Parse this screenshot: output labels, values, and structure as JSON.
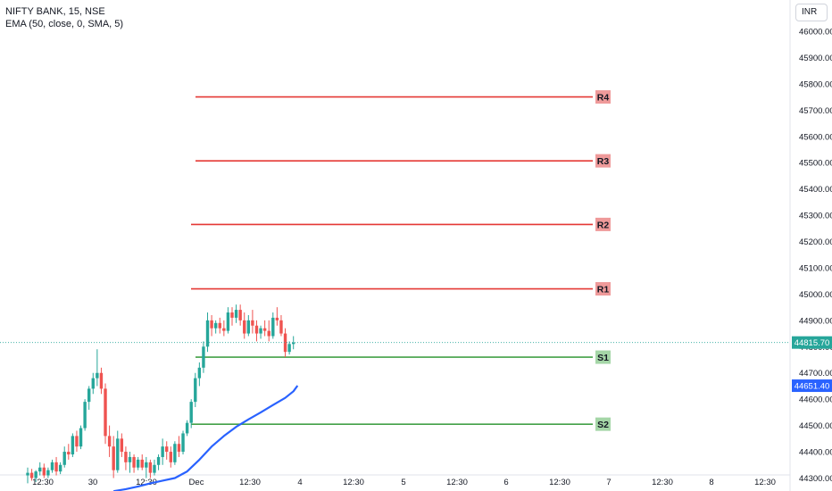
{
  "legend": {
    "symbol": "NIFTY BANK, 15, NSE",
    "indicator": "EMA (50, close, 0, SMA, 5)"
  },
  "currency_button": "INR",
  "chart_data": {
    "type": "candlestick",
    "symbol": "NIFTY BANK",
    "interval": "15",
    "exchange": "NSE",
    "y_ticks": [
      44300,
      44400,
      44500,
      44600,
      44700,
      44800,
      44900,
      45000,
      45100,
      45200,
      45300,
      45400,
      45500,
      45600,
      45700,
      45800,
      45900,
      46000
    ],
    "ylim": [
      44245,
      46055
    ],
    "x_ticks": [
      "12:30",
      "30",
      "12:30",
      "Dec",
      "12:30",
      "4",
      "12:30",
      "5",
      "12:30",
      "6",
      "12:30",
      "7",
      "12:30",
      "8",
      "12:30"
    ],
    "last_price": "44815.70",
    "ema_last": "44651.40",
    "colors": {
      "up": "#26a69a",
      "down": "#ef5350",
      "ema": "#2962ff",
      "resistance": "#e53935",
      "support": "#43a047"
    },
    "levels": [
      {
        "label": "R4",
        "value": 45750
      },
      {
        "label": "R3",
        "value": 45507
      },
      {
        "label": "R2",
        "value": 45265
      },
      {
        "label": "R1",
        "value": 45020
      },
      {
        "label": "S1",
        "value": 44760
      },
      {
        "label": "S2",
        "value": 44505
      }
    ],
    "candles": [
      [
        44310,
        44340,
        44280,
        44320
      ],
      [
        44320,
        44335,
        44290,
        44300
      ],
      [
        44300,
        44330,
        44285,
        44325
      ],
      [
        44325,
        44360,
        44310,
        44340
      ],
      [
        44340,
        44355,
        44300,
        44310
      ],
      [
        44310,
        44340,
        44300,
        44330
      ],
      [
        44330,
        44370,
        44320,
        44360
      ],
      [
        44360,
        44380,
        44310,
        44325
      ],
      [
        44325,
        44360,
        44315,
        44350
      ],
      [
        44350,
        44420,
        44340,
        44400
      ],
      [
        44400,
        44430,
        44370,
        44390
      ],
      [
        44390,
        44470,
        44380,
        44460
      ],
      [
        44460,
        44480,
        44400,
        44420
      ],
      [
        44420,
        44500,
        44410,
        44490
      ],
      [
        44490,
        44600,
        44480,
        44590
      ],
      [
        44590,
        44650,
        44560,
        44640
      ],
      [
        44640,
        44700,
        44620,
        44680
      ],
      [
        44680,
        44790,
        44650,
        44700
      ],
      [
        44700,
        44720,
        44620,
        44640
      ],
      [
        44640,
        44660,
        44430,
        44460
      ],
      [
        44460,
        44500,
        44380,
        44420
      ],
      [
        44420,
        44460,
        44300,
        44330
      ],
      [
        44330,
        44480,
        44320,
        44450
      ],
      [
        44450,
        44470,
        44380,
        44400
      ],
      [
        44400,
        44420,
        44330,
        44360
      ],
      [
        44360,
        44400,
        44320,
        44380
      ],
      [
        44380,
        44390,
        44320,
        44340
      ],
      [
        44340,
        44380,
        44330,
        44370
      ],
      [
        44370,
        44390,
        44330,
        44340
      ],
      [
        44340,
        44380,
        44300,
        44360
      ],
      [
        44360,
        44370,
        44300,
        44320
      ],
      [
        44320,
        44370,
        44310,
        44350
      ],
      [
        44350,
        44390,
        44330,
        44380
      ],
      [
        44380,
        44450,
        44350,
        44420
      ],
      [
        44420,
        44440,
        44370,
        44400
      ],
      [
        44400,
        44420,
        44340,
        44360
      ],
      [
        44360,
        44440,
        44350,
        44430
      ],
      [
        44430,
        44460,
        44380,
        44400
      ],
      [
        44400,
        44480,
        44390,
        44470
      ],
      [
        44470,
        44520,
        44460,
        44510
      ],
      [
        44510,
        44600,
        44490,
        44590
      ],
      [
        44590,
        44700,
        44570,
        44680
      ],
      [
        44680,
        44740,
        44650,
        44720
      ],
      [
        44720,
        44820,
        44700,
        44800
      ],
      [
        44800,
        44930,
        44780,
        44900
      ],
      [
        44900,
        44920,
        44840,
        44870
      ],
      [
        44870,
        44900,
        44850,
        44890
      ],
      [
        44890,
        44910,
        44850,
        44870
      ],
      [
        44870,
        44900,
        44840,
        44860
      ],
      [
        44860,
        44950,
        44850,
        44930
      ],
      [
        44930,
        44950,
        44880,
        44910
      ],
      [
        44910,
        44960,
        44890,
        44940
      ],
      [
        44940,
        44960,
        44880,
        44900
      ],
      [
        44900,
        44930,
        44830,
        44850
      ],
      [
        44850,
        44920,
        44840,
        44900
      ],
      [
        44900,
        44940,
        44850,
        44880
      ],
      [
        44880,
        44900,
        44820,
        44850
      ],
      [
        44850,
        44880,
        44830,
        44870
      ],
      [
        44870,
        44900,
        44840,
        44860
      ],
      [
        44860,
        44900,
        44820,
        44840
      ],
      [
        44840,
        44930,
        44830,
        44910
      ],
      [
        44910,
        44950,
        44880,
        44900
      ],
      [
        44900,
        44920,
        44840,
        44850
      ],
      [
        44850,
        44870,
        44760,
        44780
      ],
      [
        44780,
        44820,
        44770,
        44810
      ],
      [
        44810,
        44840,
        44790,
        44815.7
      ]
    ],
    "ema": [
      [
        21,
        44250
      ],
      [
        24,
        44258
      ],
      [
        27,
        44268
      ],
      [
        30,
        44280
      ],
      [
        33,
        44290
      ],
      [
        36,
        44300
      ],
      [
        39,
        44325
      ],
      [
        42,
        44370
      ],
      [
        45,
        44420
      ],
      [
        48,
        44460
      ],
      [
        51,
        44495
      ],
      [
        54,
        44523
      ],
      [
        57,
        44550
      ],
      [
        60,
        44578
      ],
      [
        63,
        44605
      ],
      [
        65,
        44630
      ],
      [
        66,
        44651.4
      ]
    ]
  }
}
